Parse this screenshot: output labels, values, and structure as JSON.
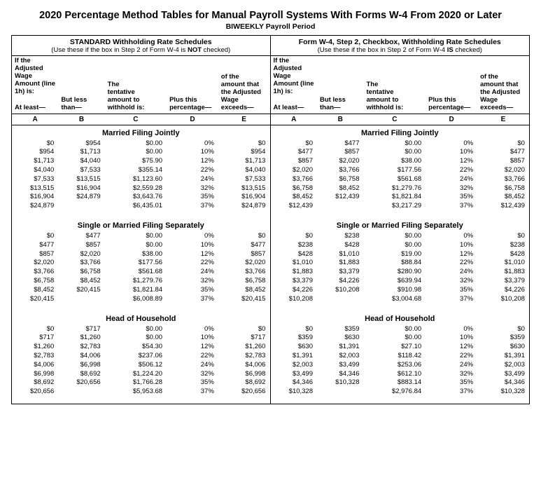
{
  "title": "2020 Percentage Method Tables for Manual Payroll Systems With Forms W-4 From 2020 or Later",
  "subtitle": "BIWEEKLY Payroll Period",
  "panels": {
    "standard": {
      "title": "STANDARD Withholding Rate Schedules",
      "note_pre": "(Use these if the box in Step 2 of Form W-4 is ",
      "note_bold": "NOT",
      "note_post": " checked)"
    },
    "step2": {
      "title": "Form W-4, Step 2, Checkbox, Withholding Rate Schedules",
      "note_pre": "(Use these if the box in Step 2 of Form W-4 ",
      "note_bold": "IS",
      "note_post": " checked)"
    }
  },
  "headers": {
    "ab_top": "If the Adjusted Wage Amount (line 1h) is:",
    "a": "At least—",
    "b_top": "But less",
    "b_bot": "than—",
    "c_top": "The tentative amount to",
    "c_bot": "withhold is:",
    "d_top": "Plus this",
    "d_bot": "percentage—",
    "e_top": "of the amount that the Adjusted Wage",
    "e_bot": "exceeds—",
    "letters": [
      "A",
      "B",
      "C",
      "D",
      "E"
    ]
  },
  "sections": [
    {
      "name": "Married Filing Jointly",
      "left": [
        [
          "$0",
          "$954",
          "$0.00",
          "0%",
          "$0"
        ],
        [
          "$954",
          "$1,713",
          "$0.00",
          "10%",
          "$954"
        ],
        [
          "$1,713",
          "$4,040",
          "$75.90",
          "12%",
          "$1,713"
        ],
        [
          "$4,040",
          "$7,533",
          "$355.14",
          "22%",
          "$4,040"
        ],
        [
          "$7,533",
          "$13,515",
          "$1,123.60",
          "24%",
          "$7,533"
        ],
        [
          "$13,515",
          "$16,904",
          "$2,559.28",
          "32%",
          "$13,515"
        ],
        [
          "$16,904",
          "$24,879",
          "$3,643.76",
          "35%",
          "$16,904"
        ],
        [
          "$24,879",
          "",
          "$6,435.01",
          "37%",
          "$24,879"
        ]
      ],
      "right": [
        [
          "$0",
          "$477",
          "$0.00",
          "0%",
          "$0"
        ],
        [
          "$477",
          "$857",
          "$0.00",
          "10%",
          "$477"
        ],
        [
          "$857",
          "$2,020",
          "$38.00",
          "12%",
          "$857"
        ],
        [
          "$2,020",
          "$3,766",
          "$177.56",
          "22%",
          "$2,020"
        ],
        [
          "$3,766",
          "$6,758",
          "$561.68",
          "24%",
          "$3,766"
        ],
        [
          "$6,758",
          "$8,452",
          "$1,279.76",
          "32%",
          "$6,758"
        ],
        [
          "$8,452",
          "$12,439",
          "$1,821.84",
          "35%",
          "$8,452"
        ],
        [
          "$12,439",
          "",
          "$3,217.29",
          "37%",
          "$12,439"
        ]
      ]
    },
    {
      "name": "Single or Married Filing Separately",
      "left": [
        [
          "$0",
          "$477",
          "$0.00",
          "0%",
          "$0"
        ],
        [
          "$477",
          "$857",
          "$0.00",
          "10%",
          "$477"
        ],
        [
          "$857",
          "$2,020",
          "$38.00",
          "12%",
          "$857"
        ],
        [
          "$2,020",
          "$3,766",
          "$177.56",
          "22%",
          "$2,020"
        ],
        [
          "$3,766",
          "$6,758",
          "$561.68",
          "24%",
          "$3,766"
        ],
        [
          "$6,758",
          "$8,452",
          "$1,279.76",
          "32%",
          "$6,758"
        ],
        [
          "$8,452",
          "$20,415",
          "$1,821.84",
          "35%",
          "$8,452"
        ],
        [
          "$20,415",
          "",
          "$6,008.89",
          "37%",
          "$20,415"
        ]
      ],
      "right": [
        [
          "$0",
          "$238",
          "$0.00",
          "0%",
          "$0"
        ],
        [
          "$238",
          "$428",
          "$0.00",
          "10%",
          "$238"
        ],
        [
          "$428",
          "$1,010",
          "$19.00",
          "12%",
          "$428"
        ],
        [
          "$1,010",
          "$1,883",
          "$88.84",
          "22%",
          "$1,010"
        ],
        [
          "$1,883",
          "$3,379",
          "$280.90",
          "24%",
          "$1,883"
        ],
        [
          "$3,379",
          "$4,226",
          "$639.94",
          "32%",
          "$3,379"
        ],
        [
          "$4,226",
          "$10,208",
          "$910.98",
          "35%",
          "$4,226"
        ],
        [
          "$10,208",
          "",
          "$3,004.68",
          "37%",
          "$10,208"
        ]
      ]
    },
    {
      "name": "Head of Household",
      "left": [
        [
          "$0",
          "$717",
          "$0.00",
          "0%",
          "$0"
        ],
        [
          "$717",
          "$1,260",
          "$0.00",
          "10%",
          "$717"
        ],
        [
          "$1,260",
          "$2,783",
          "$54.30",
          "12%",
          "$1,260"
        ],
        [
          "$2,783",
          "$4,006",
          "$237.06",
          "22%",
          "$2,783"
        ],
        [
          "$4,006",
          "$6,998",
          "$506.12",
          "24%",
          "$4,006"
        ],
        [
          "$6,998",
          "$8,692",
          "$1,224.20",
          "32%",
          "$6,998"
        ],
        [
          "$8,692",
          "$20,656",
          "$1,766.28",
          "35%",
          "$8,692"
        ],
        [
          "$20,656",
          "",
          "$5,953.68",
          "37%",
          "$20,656"
        ]
      ],
      "right": [
        [
          "$0",
          "$359",
          "$0.00",
          "0%",
          "$0"
        ],
        [
          "$359",
          "$630",
          "$0.00",
          "10%",
          "$359"
        ],
        [
          "$630",
          "$1,391",
          "$27.10",
          "12%",
          "$630"
        ],
        [
          "$1,391",
          "$2,003",
          "$118.42",
          "22%",
          "$1,391"
        ],
        [
          "$2,003",
          "$3,499",
          "$253.06",
          "24%",
          "$2,003"
        ],
        [
          "$3,499",
          "$4,346",
          "$612.10",
          "32%",
          "$3,499"
        ],
        [
          "$4,346",
          "$10,328",
          "$883.14",
          "35%",
          "$4,346"
        ],
        [
          "$10,328",
          "",
          "$2,976.84",
          "37%",
          "$10,328"
        ]
      ]
    }
  ]
}
